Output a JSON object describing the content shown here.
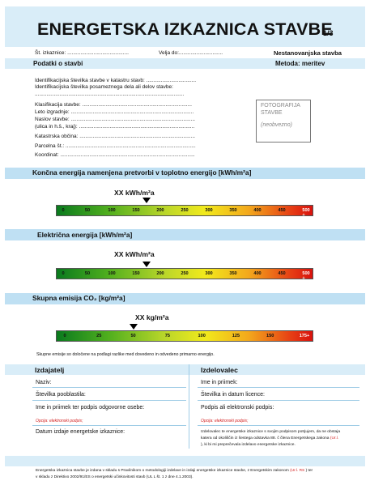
{
  "header": {
    "title": "ENERGETSKA IZKAZNICA STAVBE",
    "page": "1/3",
    "card_no_label": "Št. izkaznice: ..........................................",
    "valid_label": "Velja do:..............................",
    "type": "Nestanovanjska stavba"
  },
  "building": {
    "heading": "Podatki o stavbi",
    "method": "Metoda: meritev",
    "ids": [
      "Identifikacijska številka stavbe v katastru stavb: ..................................",
      "Identifikacijska številka posameznega dela ali delov stavbe:",
      "......................................................................................................"
    ],
    "fields": [
      "Klasifikacija stavbe: ...........................................................................",
      "Leto izgradnje: ....................................................................................",
      "Naslov stavbe: .....................................................................................",
      "(ulica in h.š., kraj): ...............................................................................",
      "Katastrska občina: ...............................................................................",
      "Parcelna št.: .........................................................................................",
      "Koordinat: ............................................................................................"
    ],
    "photo_label": "FOTOGRAFIJA",
    "photo_label2": "STAVBE",
    "photo_optional": "(neobvezno)"
  },
  "heat": {
    "heading": "Končna energija namenjena pretvorbi v toplotno energijo  [kWh/m²a]",
    "marker": "XX kWh/m²a",
    "ticks": [
      "0",
      "50",
      "100",
      "150",
      "200",
      "250",
      "300",
      "350",
      "400",
      "450",
      "500 +"
    ]
  },
  "electric": {
    "heading": "Električna energija [kWh/m²a]",
    "marker": "XX kWh/m²a",
    "ticks": [
      "0",
      "50",
      "100",
      "150",
      "200",
      "250",
      "300",
      "350",
      "400",
      "450",
      "500 +"
    ]
  },
  "co2": {
    "heading": "Skupna emisija CO₂ [kg/m²a]",
    "marker": "XX kg/m²a",
    "ticks": [
      "0",
      "25",
      "50",
      "75",
      "100",
      "125",
      "150",
      "175+"
    ],
    "note": "Skupne emisije so določene na podlagi razlike med dovedeno in odvedeno primarno energijo."
  },
  "issuer": {
    "heading": "Izdajatelj",
    "name": "Naziv:",
    "license": "Številka pooblastila:",
    "signer": "Ime in priimek ter podpis odgovorne osebe:",
    "e_sign": "Opcija: elektronski podpis;",
    "date": "Datum izdaje energetske izkaznice:"
  },
  "author": {
    "heading": "Izdelovalec",
    "name": "Ime in priimek:",
    "license": "Številka in datum licence:",
    "signer": "Podpis ali elektronski podpis:",
    "e_sign": "Opcija: elektronski podpis;",
    "statement_1": "Izdelovalec te energetske izkaznice s svojim podpisom potrjujem, da ne obstaja",
    "statement_2": "katera od okoliščin iz šestega odstavka 88. č člena Energetskega zakona",
    "statement_ref": "(Ur.l.",
    "statement_3": "), ki bi mi preprečevala izdelavo energetske izkaznice."
  },
  "footer": {
    "line1a": "Energetska izkaznica stavbe je izdana v skladu s Pravilnikom o metodologiji izdelave in izdaji energetske izkaznice stavbe, z Energetskim zakonom",
    "line1_ref": "(Ur.l. RS",
    "line1b": ") ter",
    "line2": "v skladu z Direktivo 2002/91/ES o energetski učinkovitosti stavb (UL L št. 1 z dne 4.1.2003)."
  }
}
